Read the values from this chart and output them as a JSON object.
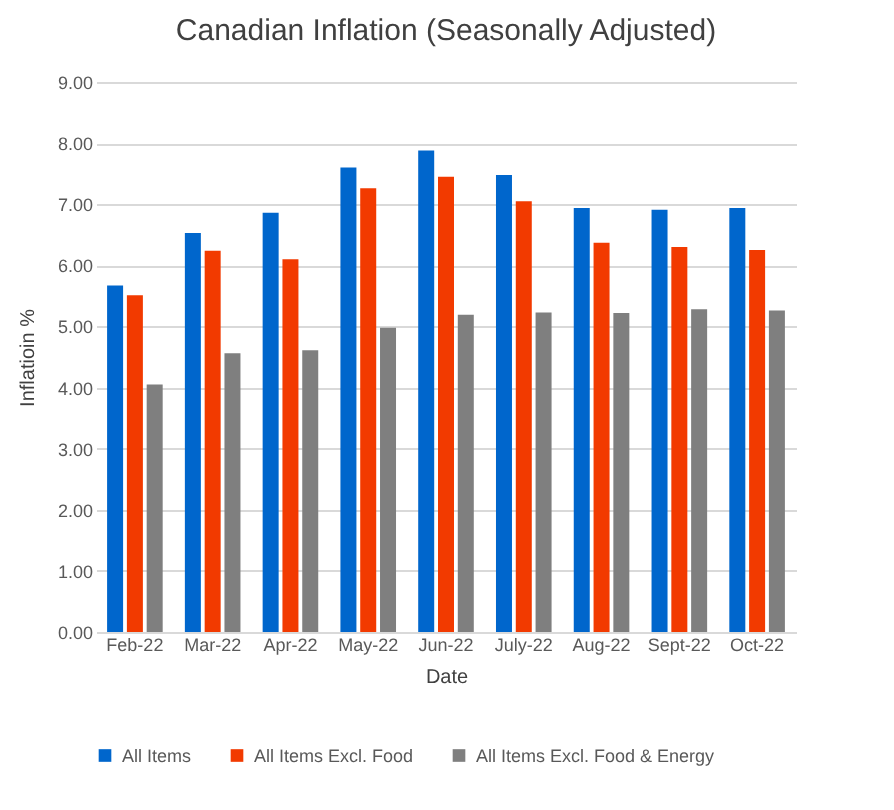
{
  "chart_data": {
    "type": "bar",
    "title": "Canadian Inflation (Seasonally Adjusted)",
    "xlabel": "Date",
    "ylabel": "Inflatioin %",
    "categories": [
      "Feb-22",
      "Mar-22",
      "Apr-22",
      "May-22",
      "Jun-22",
      "July-22",
      "Aug-22",
      "Sept-22",
      "Oct-22"
    ],
    "series": [
      {
        "name": "All Items",
        "color": "#0066cc",
        "values": [
          5.67,
          6.53,
          6.86,
          7.6,
          7.88,
          7.48,
          6.94,
          6.91,
          6.94
        ]
      },
      {
        "name": "All Items Excl. Food",
        "color": "#f23a00",
        "values": [
          5.51,
          6.24,
          6.1,
          7.26,
          7.45,
          7.05,
          6.37,
          6.3,
          6.25
        ]
      },
      {
        "name": "All Items Excl. Food & Energy",
        "color": "#7f7f7f",
        "values": [
          4.05,
          4.56,
          4.61,
          4.98,
          5.19,
          5.23,
          5.22,
          5.28,
          5.26
        ]
      }
    ],
    "ylim": [
      0,
      9
    ],
    "yticks": [
      {
        "value": 0,
        "label": "0.00"
      },
      {
        "value": 1,
        "label": "1.00"
      },
      {
        "value": 2,
        "label": "2.00"
      },
      {
        "value": 3,
        "label": "3.00"
      },
      {
        "value": 4,
        "label": "4.00"
      },
      {
        "value": 5,
        "label": "5.00"
      },
      {
        "value": 6,
        "label": "6.00"
      },
      {
        "value": 7,
        "label": "7.00"
      },
      {
        "value": 8,
        "label": "8.00"
      },
      {
        "value": 9,
        "label": "9.00"
      }
    ],
    "grid": "y",
    "legend": "bottom"
  }
}
